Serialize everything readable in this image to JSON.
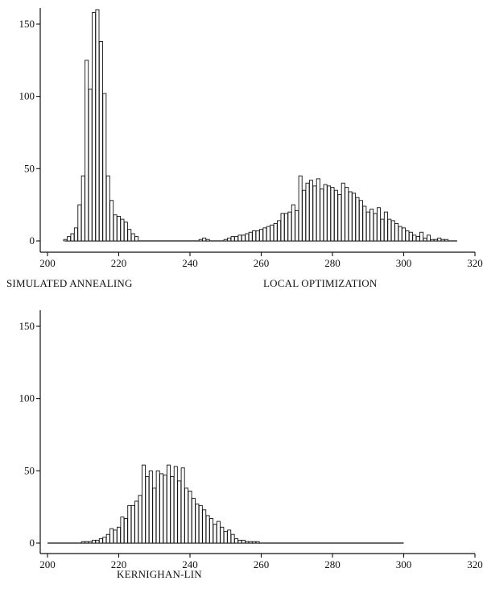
{
  "chart_data": [
    {
      "type": "bar",
      "title": "",
      "xlabel": "",
      "ylabel": "",
      "xlim": [
        200,
        320
      ],
      "ylim": [
        0,
        160
      ],
      "x_ticks": [
        "200",
        "220",
        "240",
        "260",
        "280",
        "300",
        "320"
      ],
      "y_ticks": [
        "0",
        "50",
        "100",
        "150"
      ],
      "grid": false,
      "baseline_range": [
        205,
        315
      ],
      "series": [
        {
          "name": "SIMULATED ANNEALING",
          "x": [
            205,
            206,
            207,
            208,
            209,
            210,
            211,
            212,
            213,
            214,
            215,
            216,
            217,
            218,
            219,
            220,
            221,
            222,
            223,
            224,
            225
          ],
          "values": [
            1,
            3,
            5,
            9,
            25,
            45,
            125,
            105,
            158,
            160,
            138,
            102,
            45,
            28,
            18,
            17,
            15,
            13,
            8,
            5,
            3
          ]
        },
        {
          "name": "LOCAL OPTIMIZATION",
          "x": [
            243,
            244,
            245,
            250,
            251,
            252,
            253,
            254,
            255,
            256,
            257,
            258,
            259,
            260,
            261,
            262,
            263,
            264,
            265,
            266,
            267,
            268,
            269,
            270,
            271,
            272,
            273,
            274,
            275,
            276,
            277,
            278,
            279,
            280,
            281,
            282,
            283,
            284,
            285,
            286,
            287,
            288,
            289,
            290,
            291,
            292,
            293,
            294,
            295,
            296,
            297,
            298,
            299,
            300,
            301,
            302,
            303,
            304,
            305,
            306,
            307,
            308,
            309,
            310,
            311,
            312
          ],
          "values": [
            1,
            2,
            1,
            1,
            2,
            3,
            3,
            4,
            4,
            5,
            6,
            7,
            7,
            8,
            9,
            10,
            11,
            12,
            14,
            19,
            19,
            20,
            25,
            21,
            45,
            35,
            40,
            42,
            38,
            43,
            36,
            39,
            38,
            37,
            35,
            32,
            40,
            37,
            34,
            33,
            30,
            28,
            24,
            20,
            22,
            19,
            23,
            15,
            20,
            15,
            14,
            12,
            10,
            9,
            7,
            6,
            4,
            3,
            6,
            2,
            4,
            1,
            1,
            2,
            1,
            1
          ]
        }
      ]
    },
    {
      "type": "bar",
      "title": "",
      "xlabel": "",
      "ylabel": "",
      "xlim": [
        200,
        320
      ],
      "ylim": [
        0,
        160
      ],
      "x_ticks": [
        "200",
        "220",
        "240",
        "260",
        "280",
        "300",
        "320"
      ],
      "y_ticks": [
        "0",
        "50",
        "100",
        "150"
      ],
      "grid": false,
      "baseline_range": [
        200,
        300
      ],
      "series": [
        {
          "name": "KERNIGHAN-LIN",
          "x": [
            210,
            211,
            212,
            213,
            214,
            215,
            216,
            217,
            218,
            219,
            220,
            221,
            222,
            223,
            224,
            225,
            226,
            227,
            228,
            229,
            230,
            231,
            232,
            233,
            234,
            235,
            236,
            237,
            238,
            239,
            240,
            241,
            242,
            243,
            244,
            245,
            246,
            247,
            248,
            249,
            250,
            251,
            252,
            253,
            254,
            255,
            256,
            257,
            258,
            259
          ],
          "values": [
            1,
            1,
            1,
            2,
            2,
            3,
            4,
            6,
            10,
            9,
            11,
            18,
            17,
            26,
            26,
            29,
            33,
            54,
            46,
            50,
            38,
            50,
            48,
            47,
            54,
            46,
            53,
            43,
            52,
            38,
            36,
            31,
            27,
            26,
            23,
            19,
            17,
            13,
            15,
            11,
            8,
            9,
            6,
            3,
            2,
            2,
            1,
            1,
            1,
            1
          ]
        }
      ]
    }
  ]
}
